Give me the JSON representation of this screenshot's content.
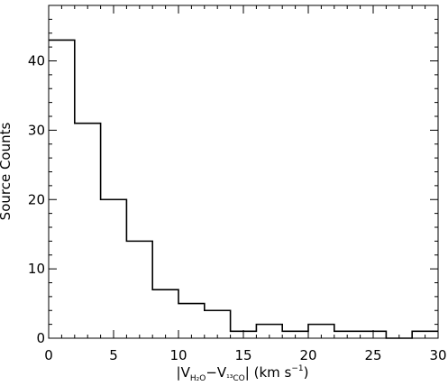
{
  "chart_data": {
    "type": "bar",
    "style": "step-histogram",
    "title": "",
    "xlabel": {
      "prefix": "|V",
      "sub1": "H₂O",
      "mid": "−V",
      "sub2": "¹³CO",
      "suffix": "| (km s",
      "sup": "−1",
      "close": ")"
    },
    "ylabel": "Source Counts",
    "xlim": [
      0,
      30
    ],
    "ylim": [
      0,
      48
    ],
    "xticks": [
      0,
      5,
      10,
      15,
      20,
      25,
      30
    ],
    "yticks": [
      0,
      10,
      20,
      30,
      40
    ],
    "bin_edges": [
      0,
      2,
      4,
      6,
      8,
      10,
      12,
      14,
      16,
      18,
      20,
      22,
      24,
      26,
      28,
      30
    ],
    "counts": [
      43,
      31,
      20,
      14,
      7,
      5,
      4,
      1,
      2,
      1,
      2,
      1,
      1,
      0,
      1
    ],
    "grid": false,
    "line_color": "#000000"
  }
}
